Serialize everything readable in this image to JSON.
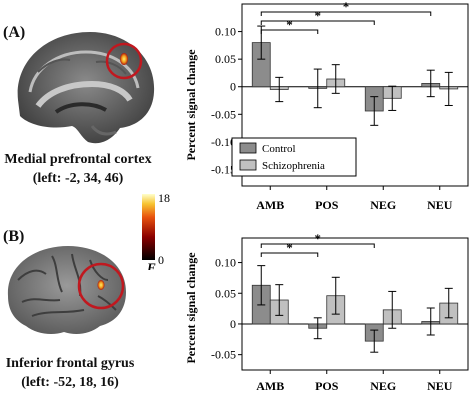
{
  "panels": [
    {
      "id": "A",
      "label": "(A)",
      "caption_line1": "Medial prefrontal cortex",
      "caption_line2": "(left: -2, 34, 46)"
    },
    {
      "id": "B",
      "label": "(B)",
      "caption_line1": "Inferior frontal gyrus",
      "caption_line2": "(left: -52, 18, 16)"
    }
  ],
  "colorbar": {
    "max_label": "18",
    "min_label": "0",
    "stat_label": "F"
  },
  "colors": {
    "control": "#8c8c8c",
    "schizophrenia": "#c0c0c0",
    "circle": "#c0181f"
  },
  "chart_data": [
    {
      "type": "bar",
      "categories": [
        "AMB",
        "POS",
        "NEG",
        "NEU"
      ],
      "ylabel": "Percent signal change",
      "ylim": [
        -0.18,
        0.15
      ],
      "yticks": [
        0.1,
        0.05,
        0,
        -0.05,
        -0.1,
        -0.15
      ],
      "ytick_labels": [
        "0.10",
        "0.05",
        "0",
        "-0.05",
        "-0.10",
        "-0.15"
      ],
      "legend_placement": "bottom-left",
      "series": [
        {
          "name": "Control",
          "values": [
            0.08,
            -0.003,
            -0.044,
            0.006
          ],
          "err": [
            0.03,
            0.035,
            0.026,
            0.024
          ]
        },
        {
          "name": "Schizophrenia",
          "values": [
            -0.005,
            0.014,
            -0.021,
            -0.004
          ],
          "err": [
            0.022,
            0.026,
            0.022,
            0.03
          ]
        }
      ],
      "significance": [
        {
          "from": "AMB",
          "to": "POS",
          "label": "*"
        },
        {
          "from": "AMB",
          "to": "NEG",
          "label": "*"
        },
        {
          "from": "AMB",
          "to": "NEU",
          "label": "*"
        }
      ]
    },
    {
      "type": "bar",
      "categories": [
        "AMB",
        "POS",
        "NEG",
        "NEU"
      ],
      "ylabel": "Percent signal change",
      "ylim": [
        -0.075,
        0.14
      ],
      "yticks": [
        0.1,
        0.05,
        0,
        -0.05
      ],
      "ytick_labels": [
        "0.10",
        "0.05",
        "0",
        "-0.05"
      ],
      "series": [
        {
          "name": "Control",
          "values": [
            0.063,
            -0.007,
            -0.028,
            0.004
          ],
          "err": [
            0.032,
            0.017,
            0.018,
            0.022
          ]
        },
        {
          "name": "Schizophrenia",
          "values": [
            0.039,
            0.046,
            0.023,
            0.034
          ],
          "err": [
            0.025,
            0.03,
            0.03,
            0.024
          ]
        }
      ],
      "significance": [
        {
          "from": "AMB",
          "to": "POS",
          "label": "*"
        },
        {
          "from": "AMB",
          "to": "NEG",
          "label": "*"
        }
      ]
    }
  ]
}
